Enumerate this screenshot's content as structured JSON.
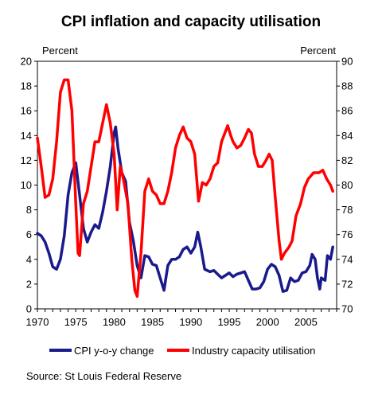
{
  "chart_data": {
    "type": "line",
    "title": "CPI inflation and capacity utilisation",
    "left_axis_label": "Percent",
    "right_axis_label": "Percent",
    "source": "Source: St Louis Federal Reserve",
    "x_range": [
      1970,
      2009
    ],
    "x_ticks": [
      1970,
      1975,
      1980,
      1985,
      1990,
      1995,
      2000,
      2005
    ],
    "left_ylim": [
      0,
      20
    ],
    "left_ticks": [
      0,
      2,
      4,
      6,
      8,
      10,
      12,
      14,
      16,
      18,
      20
    ],
    "right_ylim": [
      70,
      90
    ],
    "right_ticks": [
      70,
      72,
      74,
      76,
      78,
      80,
      82,
      84,
      86,
      88,
      90
    ],
    "legend_position": "bottom",
    "grid": false,
    "series": [
      {
        "name": "CPI y-o-y change",
        "color": "#1a1a8c",
        "axis": "left",
        "points": [
          [
            1970.0,
            6.1
          ],
          [
            1970.5,
            5.9
          ],
          [
            1971.0,
            5.4
          ],
          [
            1971.5,
            4.5
          ],
          [
            1972.0,
            3.4
          ],
          [
            1972.5,
            3.2
          ],
          [
            1973.0,
            4.0
          ],
          [
            1973.5,
            5.9
          ],
          [
            1974.0,
            9.2
          ],
          [
            1974.5,
            11.0
          ],
          [
            1975.0,
            11.8
          ],
          [
            1975.5,
            9.2
          ],
          [
            1976.0,
            6.5
          ],
          [
            1976.5,
            5.4
          ],
          [
            1977.0,
            6.2
          ],
          [
            1977.5,
            6.8
          ],
          [
            1978.0,
            6.5
          ],
          [
            1978.5,
            7.8
          ],
          [
            1979.0,
            9.5
          ],
          [
            1979.5,
            11.5
          ],
          [
            1980.0,
            14.2
          ],
          [
            1980.2,
            14.7
          ],
          [
            1980.5,
            13.0
          ],
          [
            1981.0,
            11.0
          ],
          [
            1981.5,
            10.3
          ],
          [
            1982.0,
            7.0
          ],
          [
            1982.5,
            5.5
          ],
          [
            1983.0,
            3.5
          ],
          [
            1983.5,
            2.5
          ],
          [
            1984.0,
            4.3
          ],
          [
            1984.5,
            4.2
          ],
          [
            1985.0,
            3.6
          ],
          [
            1985.5,
            3.5
          ],
          [
            1986.0,
            2.5
          ],
          [
            1986.5,
            1.5
          ],
          [
            1987.0,
            3.5
          ],
          [
            1987.5,
            4.0
          ],
          [
            1988.0,
            4.0
          ],
          [
            1988.5,
            4.2
          ],
          [
            1989.0,
            4.8
          ],
          [
            1989.5,
            5.0
          ],
          [
            1990.0,
            4.5
          ],
          [
            1990.5,
            5.0
          ],
          [
            1990.9,
            6.2
          ],
          [
            1991.3,
            5.0
          ],
          [
            1991.8,
            3.2
          ],
          [
            1992.5,
            3.0
          ],
          [
            1993.0,
            3.1
          ],
          [
            1993.5,
            2.8
          ],
          [
            1994.0,
            2.5
          ],
          [
            1994.5,
            2.7
          ],
          [
            1995.0,
            2.9
          ],
          [
            1995.5,
            2.6
          ],
          [
            1996.0,
            2.8
          ],
          [
            1996.5,
            2.9
          ],
          [
            1997.0,
            3.0
          ],
          [
            1997.5,
            2.3
          ],
          [
            1998.0,
            1.6
          ],
          [
            1998.5,
            1.6
          ],
          [
            1999.0,
            1.7
          ],
          [
            1999.5,
            2.2
          ],
          [
            2000.0,
            3.2
          ],
          [
            2000.5,
            3.6
          ],
          [
            2001.0,
            3.4
          ],
          [
            2001.5,
            2.7
          ],
          [
            2002.0,
            1.4
          ],
          [
            2002.5,
            1.5
          ],
          [
            2003.0,
            2.5
          ],
          [
            2003.5,
            2.2
          ],
          [
            2004.0,
            2.3
          ],
          [
            2004.5,
            2.9
          ],
          [
            2005.0,
            3.0
          ],
          [
            2005.5,
            3.5
          ],
          [
            2005.8,
            4.4
          ],
          [
            2006.2,
            4.0
          ],
          [
            2006.5,
            2.5
          ],
          [
            2006.8,
            1.6
          ],
          [
            2007.0,
            2.5
          ],
          [
            2007.5,
            2.3
          ],
          [
            2007.8,
            4.3
          ],
          [
            2008.2,
            4.0
          ],
          [
            2008.5,
            5.0
          ]
        ]
      },
      {
        "name": "Industry capacity utilisation",
        "color": "#ff0000",
        "axis": "right",
        "points": [
          [
            1970.0,
            83.8
          ],
          [
            1970.5,
            81.5
          ],
          [
            1971.0,
            79.0
          ],
          [
            1971.5,
            79.2
          ],
          [
            1972.0,
            80.5
          ],
          [
            1972.5,
            83.5
          ],
          [
            1973.0,
            87.5
          ],
          [
            1973.5,
            88.5
          ],
          [
            1974.0,
            88.5
          ],
          [
            1974.5,
            86.0
          ],
          [
            1975.0,
            78.5
          ],
          [
            1975.3,
            74.5
          ],
          [
            1975.5,
            74.3
          ],
          [
            1976.0,
            78.5
          ],
          [
            1976.5,
            79.5
          ],
          [
            1977.0,
            81.5
          ],
          [
            1977.5,
            83.5
          ],
          [
            1978.0,
            83.5
          ],
          [
            1978.5,
            85.0
          ],
          [
            1979.0,
            86.5
          ],
          [
            1979.5,
            85.0
          ],
          [
            1980.0,
            82.5
          ],
          [
            1980.4,
            78.0
          ],
          [
            1980.8,
            81.5
          ],
          [
            1981.2,
            80.5
          ],
          [
            1981.8,
            78.5
          ],
          [
            1982.3,
            74.0
          ],
          [
            1982.7,
            71.5
          ],
          [
            1983.0,
            71.0
          ],
          [
            1983.5,
            74.5
          ],
          [
            1984.0,
            79.5
          ],
          [
            1984.5,
            80.5
          ],
          [
            1985.0,
            79.5
          ],
          [
            1985.5,
            79.2
          ],
          [
            1986.0,
            78.5
          ],
          [
            1986.5,
            78.5
          ],
          [
            1987.0,
            79.5
          ],
          [
            1987.5,
            81.0
          ],
          [
            1988.0,
            83.0
          ],
          [
            1988.5,
            84.0
          ],
          [
            1989.0,
            84.7
          ],
          [
            1989.5,
            83.8
          ],
          [
            1990.0,
            83.5
          ],
          [
            1990.5,
            82.5
          ],
          [
            1991.0,
            78.7
          ],
          [
            1991.5,
            80.2
          ],
          [
            1992.0,
            80.0
          ],
          [
            1992.5,
            80.5
          ],
          [
            1993.0,
            81.5
          ],
          [
            1993.5,
            81.8
          ],
          [
            1994.0,
            83.5
          ],
          [
            1994.8,
            84.8
          ],
          [
            1995.2,
            84.0
          ],
          [
            1995.5,
            83.5
          ],
          [
            1996.0,
            83.0
          ],
          [
            1996.5,
            83.2
          ],
          [
            1997.0,
            83.8
          ],
          [
            1997.5,
            84.5
          ],
          [
            1997.9,
            84.2
          ],
          [
            1998.3,
            82.5
          ],
          [
            1998.8,
            81.5
          ],
          [
            1999.3,
            81.5
          ],
          [
            1999.8,
            82.0
          ],
          [
            2000.2,
            82.5
          ],
          [
            2000.6,
            82.0
          ],
          [
            2001.0,
            79.0
          ],
          [
            2001.5,
            75.5
          ],
          [
            2001.8,
            74.0
          ],
          [
            2002.2,
            74.5
          ],
          [
            2002.8,
            75.0
          ],
          [
            2003.2,
            75.5
          ],
          [
            2003.7,
            77.5
          ],
          [
            2004.3,
            78.5
          ],
          [
            2004.8,
            79.8
          ],
          [
            2005.3,
            80.5
          ],
          [
            2006.0,
            81.0
          ],
          [
            2006.7,
            81.0
          ],
          [
            2007.2,
            81.2
          ],
          [
            2007.7,
            80.5
          ],
          [
            2008.2,
            80.0
          ],
          [
            2008.5,
            79.5
          ]
        ]
      }
    ]
  }
}
